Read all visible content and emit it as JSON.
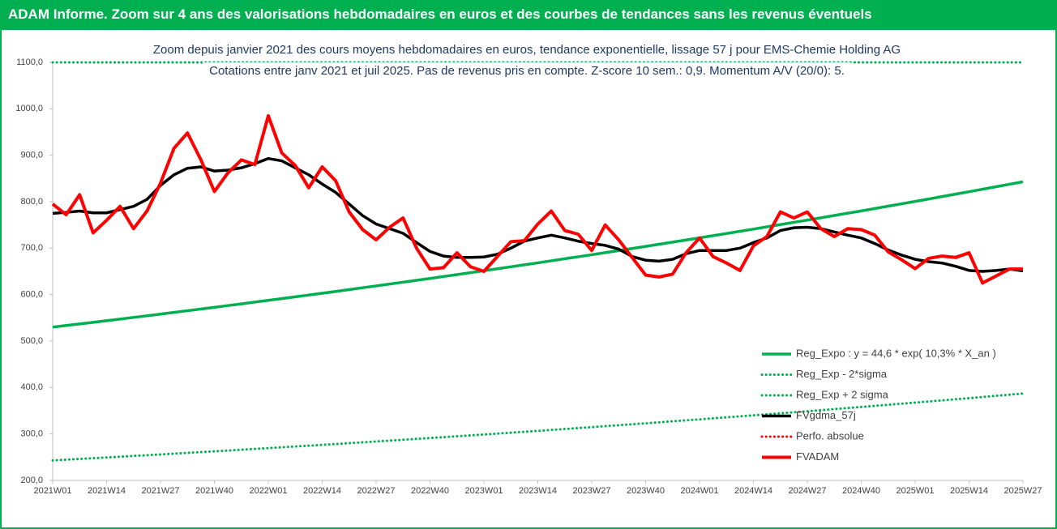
{
  "header": {
    "title": "ADAM Informe. Zoom sur 4 ans des valorisations hebdomadaires en euros et des courbes de tendances sans les revenus éventuels"
  },
  "chart_data": {
    "type": "line",
    "title": "Zoom depuis janvier 2021 des cours moyens hebdomadaires en euros, tendance exponentielle, lissage 57 j pour EMS-Chemie Holding AG",
    "subtitle": "Cotations entre janv 2021 et juil 2025. Pas de revenus pris en compte. Z-score 10 sem.: 0,9. Momentum A/V (20/0): 5.",
    "categories": [
      "2021W01",
      null,
      null,
      null,
      "2021W14",
      null,
      null,
      null,
      "2021W27",
      null,
      null,
      null,
      "2021W40",
      null,
      null,
      null,
      "2022W01",
      null,
      null,
      null,
      "2022W14",
      null,
      null,
      null,
      "2022W27",
      null,
      null,
      null,
      "2022W40",
      null,
      null,
      null,
      "2023W01",
      null,
      null,
      null,
      "2023W14",
      null,
      null,
      null,
      "2023W27",
      null,
      null,
      null,
      "2023W40",
      null,
      null,
      null,
      "2024W01",
      null,
      null,
      null,
      "2024W14",
      null,
      null,
      null,
      "2024W27",
      null,
      null,
      null,
      "2024W40",
      null,
      null,
      null,
      "2025W01",
      null,
      null,
      null,
      "2025W14",
      null,
      null,
      null,
      "2025W27"
    ],
    "ylim": [
      200,
      1100
    ],
    "yticks": [
      {
        "value": 200,
        "label": "200,0"
      },
      {
        "value": 300,
        "label": "300,0"
      },
      {
        "value": 400,
        "label": "400,0"
      },
      {
        "value": 500,
        "label": "500,0"
      },
      {
        "value": 600,
        "label": "600,0"
      },
      {
        "value": 700,
        "label": "700,0"
      },
      {
        "value": 800,
        "label": "800,0"
      },
      {
        "value": 900,
        "label": "900,0"
      },
      {
        "value": 1000,
        "label": "1000,0"
      },
      {
        "value": 1100,
        "label": "1100,0"
      }
    ],
    "grid": false,
    "legend": "lower right",
    "series": [
      {
        "name": "Reg_Expo : y = 44,6 * exp( 10,3% *  X_an )",
        "color": "#00b050",
        "style": "solid",
        "values": [
          530,
          533.5,
          536.9,
          540.4,
          543.8,
          547.3,
          550.9,
          554.4,
          558.0,
          561.7,
          565.3,
          569.0,
          572.6,
          576.4,
          580.1,
          583.9,
          587.6,
          591.4,
          595.3,
          599.1,
          602.9,
          606.9,
          610.8,
          614.8,
          618.7,
          622.7,
          626.8,
          630.8,
          634.8,
          639.0,
          643.1,
          647.3,
          651.4,
          655.7,
          659.9,
          664.2,
          668.4,
          672.8,
          677.2,
          681.5,
          685.9,
          690.4,
          694.9,
          699.3,
          703.8,
          708.4,
          713.0,
          717.6,
          722.2,
          726.9,
          731.6,
          736.3,
          741.0,
          745.9,
          750.7,
          755.6,
          760.4,
          765.4,
          770.3,
          775.3,
          780.2,
          785.3,
          790.4,
          795.5,
          800.6,
          805.8,
          811.1,
          816.3,
          821.5,
          826.9,
          832.3,
          837.6,
          843.0
        ]
      },
      {
        "name": "Reg_Exp - 2*sigma",
        "color": "#00b050",
        "style": "dotted",
        "values": [
          243.0,
          244.6,
          246.2,
          247.8,
          249.4,
          251.0,
          252.7,
          254.3,
          255.9,
          257.6,
          259.3,
          260.9,
          262.6,
          264.3,
          266.1,
          267.8,
          269.5,
          271.3,
          273.0,
          274.8,
          276.5,
          278.3,
          280.2,
          282.0,
          283.8,
          285.7,
          287.5,
          289.4,
          291.2,
          293.1,
          295.0,
          296.9,
          298.8,
          300.8,
          302.7,
          304.7,
          306.6,
          308.6,
          310.7,
          312.7,
          314.7,
          316.8,
          318.8,
          320.9,
          322.9,
          325.0,
          327.2,
          329.3,
          331.4,
          333.6,
          335.7,
          337.9,
          340.0,
          342.2,
          344.5,
          346.7,
          348.9,
          351.2,
          353.5,
          355.8,
          358.1,
          360.5,
          362.8,
          365.2,
          367.5,
          369.9,
          372.3,
          374.7,
          377.1,
          379.6,
          382.1,
          384.5,
          387.0
        ]
      },
      {
        "name": "Reg_Exp + 2 sigma",
        "color": "#00b050",
        "style": "dotted",
        "values": [
          1100,
          1100,
          1100,
          1100,
          1100,
          1100,
          1100,
          1100,
          1100,
          1100,
          1100,
          1100,
          1100,
          1100,
          1100,
          1100,
          1100,
          1100,
          1100,
          1100,
          1100,
          1100,
          1100,
          1100,
          1100,
          1100,
          1100,
          1100,
          1100,
          1100,
          1100,
          1100,
          1100,
          1100,
          1100,
          1100,
          1100,
          1100,
          1100,
          1100,
          1100,
          1100,
          1100,
          1100,
          1100,
          1100,
          1100,
          1100,
          1100,
          1100,
          1100,
          1100,
          1100,
          1100,
          1100,
          1100,
          1100,
          1100,
          1100,
          1100,
          1100,
          1100,
          1100,
          1100,
          1100,
          1100,
          1100,
          1100,
          1100,
          1100,
          1100,
          1100,
          1100
        ]
      },
      {
        "name": "FVgdma_57j",
        "color": "#000000",
        "style": "solid",
        "values": [
          775,
          777,
          780,
          776,
          776,
          783,
          790,
          805,
          835,
          858,
          872,
          875,
          866,
          868,
          873,
          882,
          893,
          888,
          873,
          858,
          838,
          820,
          795,
          770,
          752,
          742,
          732,
          712,
          693,
          683,
          680,
          680,
          681,
          687,
          700,
          715,
          722,
          728,
          722,
          715,
          710,
          706,
          698,
          682,
          674,
          672,
          676,
          688,
          695,
          695,
          695,
          700,
          712,
          722,
          738,
          744,
          745,
          742,
          735,
          728,
          722,
          710,
          696,
          685,
          676,
          671,
          668,
          661,
          652,
          650,
          652,
          655,
          651
        ]
      },
      {
        "name": "Perfo. absolue",
        "color": "#ff0000",
        "style": "dotted",
        "values": [
          null,
          null,
          null,
          null,
          null,
          null,
          null,
          null,
          null,
          null,
          null,
          null,
          null,
          null,
          null,
          null,
          null,
          null,
          null,
          null,
          null,
          null,
          null,
          null,
          null,
          null,
          null,
          null,
          null,
          null,
          null,
          null,
          null,
          null,
          null,
          null,
          null,
          null,
          null,
          null,
          null,
          null,
          null,
          null,
          null,
          null,
          null,
          null,
          null,
          null,
          null,
          null,
          null,
          null,
          null,
          null,
          null,
          null,
          null,
          null,
          null,
          null,
          null,
          null,
          null,
          null,
          null,
          null,
          null,
          null,
          null,
          null,
          null
        ]
      },
      {
        "name": "FVADAM",
        "color": "#ff0000",
        "style": "thick",
        "values": [
          795,
          772,
          815,
          733,
          760,
          790,
          742,
          780,
          840,
          915,
          948,
          890,
          822,
          862,
          890,
          880,
          985,
          905,
          878,
          830,
          875,
          845,
          778,
          740,
          718,
          745,
          765,
          700,
          655,
          658,
          690,
          660,
          650,
          682,
          714,
          716,
          752,
          780,
          738,
          730,
          695,
          750,
          718,
          680,
          642,
          638,
          644,
          690,
          722,
          682,
          668,
          652,
          705,
          725,
          778,
          765,
          778,
          742,
          725,
          742,
          740,
          728,
          692,
          675,
          656,
          678,
          683,
          680,
          690,
          625,
          640,
          655,
          655
        ]
      }
    ]
  }
}
